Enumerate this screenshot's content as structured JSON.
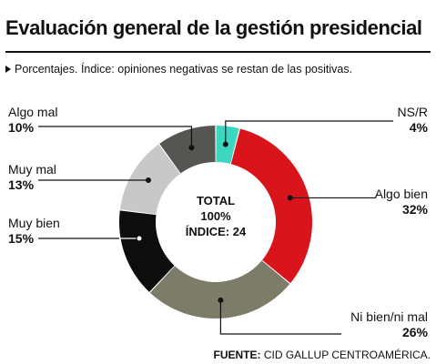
{
  "header": {
    "title": "Evaluación general de la gestión presidencial",
    "subtitle": "Porcentajes. Índice: opiniones negativas se restan de las positivas."
  },
  "center": {
    "line1": "TOTAL",
    "line2": "100%",
    "line3": "ÍNDICE: 24"
  },
  "source": {
    "label": "FUENTE:",
    "text": "CID GALLUP CENTROAMÉRICA."
  },
  "chart_data": {
    "type": "pie",
    "donut": true,
    "categories": [
      "NS/R",
      "Algo bien",
      "Ni bien/ni mal",
      "Muy bien",
      "Muy mal",
      "Algo mal"
    ],
    "values": [
      4,
      32,
      26,
      15,
      13,
      10
    ],
    "value_labels": [
      "4%",
      "32%",
      "26%",
      "15%",
      "13%",
      "10%"
    ],
    "colors": [
      "#3dd6c0",
      "#d9141a",
      "#7c7c68",
      "#0d0d0d",
      "#c8c8c8",
      "#555552"
    ],
    "total_label": "100%",
    "index_value": 24
  }
}
